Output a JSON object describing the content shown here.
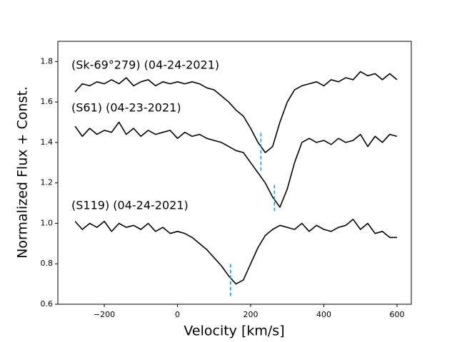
{
  "chart_data": {
    "type": "line",
    "xlabel": "Velocity [km/s]",
    "ylabel": "Normalized Flux + Const.",
    "x": [
      -280,
      -260,
      -240,
      -220,
      -200,
      -180,
      -160,
      -140,
      -120,
      -100,
      -80,
      -60,
      -40,
      -20,
      0,
      20,
      40,
      60,
      80,
      100,
      120,
      140,
      160,
      180,
      200,
      220,
      240,
      260,
      280,
      300,
      320,
      340,
      360,
      380,
      400,
      420,
      440,
      460,
      480,
      500,
      520,
      540,
      560,
      580,
      600
    ],
    "series": [
      {
        "name": "(Sk-69°279) (04-24-2021)",
        "color": "#000000",
        "values": [
          1.65,
          1.69,
          1.68,
          1.7,
          1.69,
          1.71,
          1.69,
          1.72,
          1.68,
          1.7,
          1.71,
          1.68,
          1.7,
          1.69,
          1.7,
          1.69,
          1.7,
          1.69,
          1.67,
          1.66,
          1.63,
          1.6,
          1.56,
          1.53,
          1.47,
          1.4,
          1.35,
          1.38,
          1.5,
          1.6,
          1.66,
          1.68,
          1.69,
          1.7,
          1.68,
          1.71,
          1.7,
          1.72,
          1.71,
          1.75,
          1.73,
          1.74,
          1.71,
          1.74,
          1.71
        ]
      },
      {
        "name": "(S61) (04-23-2021)",
        "color": "#000000",
        "values": [
          1.48,
          1.43,
          1.47,
          1.44,
          1.46,
          1.45,
          1.5,
          1.44,
          1.47,
          1.43,
          1.46,
          1.44,
          1.45,
          1.46,
          1.42,
          1.45,
          1.43,
          1.44,
          1.42,
          1.41,
          1.4,
          1.38,
          1.36,
          1.35,
          1.3,
          1.25,
          1.2,
          1.13,
          1.08,
          1.17,
          1.3,
          1.4,
          1.42,
          1.4,
          1.41,
          1.39,
          1.42,
          1.4,
          1.41,
          1.44,
          1.38,
          1.43,
          1.4,
          1.44,
          1.43
        ]
      },
      {
        "name": "(S119) (04-24-2021)",
        "color": "#000000",
        "values": [
          1.01,
          0.97,
          1.0,
          0.98,
          1.01,
          0.96,
          1.0,
          0.98,
          0.99,
          0.97,
          1.0,
          0.96,
          0.98,
          0.95,
          0.96,
          0.95,
          0.93,
          0.9,
          0.87,
          0.83,
          0.79,
          0.74,
          0.7,
          0.72,
          0.8,
          0.88,
          0.94,
          0.97,
          0.99,
          0.98,
          0.97,
          1.0,
          0.96,
          0.99,
          0.97,
          0.96,
          0.98,
          0.99,
          1.02,
          0.97,
          1.0,
          0.95,
          0.96,
          0.93,
          0.93
        ]
      }
    ],
    "markers": [
      {
        "x": 228,
        "y": [
          1.26,
          1.45
        ],
        "color": "#1f9be0"
      },
      {
        "x": 265,
        "y": [
          1.06,
          1.2
        ],
        "color": "#1f9be0"
      },
      {
        "x": 145,
        "y": [
          0.64,
          0.8
        ],
        "color": "#1f9be0"
      }
    ],
    "xlim": [
      -327,
      639
    ],
    "ylim": [
      0.6,
      1.9
    ],
    "xticks": [
      {
        "value": -200,
        "label": "−200"
      },
      0,
      200,
      400,
      600
    ],
    "yticks": [
      0.6,
      0.8,
      {
        "value": 1,
        "label": "1.0"
      },
      1.2,
      1.4,
      1.6,
      1.8
    ]
  }
}
